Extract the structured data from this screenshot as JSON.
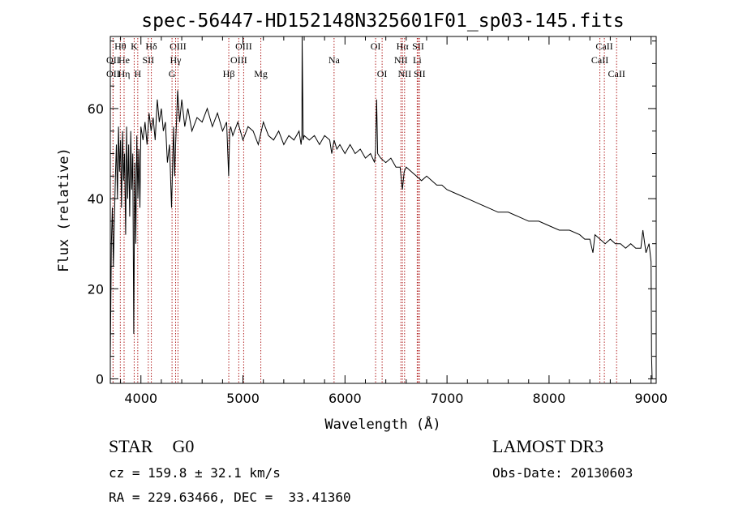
{
  "chart_data": {
    "type": "line",
    "title": "spec-56447-HD152148N325601F01_sp03-145.fits",
    "xlabel": "Wavelength (Å)",
    "ylabel": "Flux (relative)",
    "xlim": [
      3700,
      9050
    ],
    "ylim": [
      -1,
      76
    ],
    "x_ticks": [
      4000,
      5000,
      6000,
      7000,
      8000,
      9000
    ],
    "y_ticks": [
      0,
      20,
      40,
      60
    ],
    "x_tick_labels": [
      "4000",
      "5000",
      "6000",
      "7000",
      "8000",
      "9000"
    ],
    "y_tick_labels": [
      "0",
      "20",
      "40",
      "60"
    ],
    "line_color": "#000000",
    "marker_color": "#b22222",
    "spectrum": {
      "x": [
        3700,
        3710,
        3720,
        3730,
        3740,
        3750,
        3760,
        3770,
        3780,
        3790,
        3800,
        3810,
        3820,
        3830,
        3840,
        3850,
        3860,
        3870,
        3880,
        3890,
        3900,
        3910,
        3920,
        3930,
        3940,
        3950,
        3960,
        3970,
        3980,
        3990,
        4000,
        4020,
        4040,
        4060,
        4080,
        4100,
        4120,
        4140,
        4160,
        4180,
        4200,
        4220,
        4240,
        4260,
        4280,
        4300,
        4320,
        4330,
        4340,
        4350,
        4360,
        4380,
        4400,
        4430,
        4460,
        4500,
        4550,
        4600,
        4650,
        4700,
        4750,
        4800,
        4840,
        4860,
        4870,
        4880,
        4900,
        4950,
        5000,
        5050,
        5100,
        5150,
        5200,
        5250,
        5300,
        5350,
        5400,
        5450,
        5500,
        5550,
        5570,
        5578,
        5580,
        5590,
        5600,
        5650,
        5700,
        5750,
        5800,
        5850,
        5870,
        5893,
        5920,
        5950,
        6000,
        6050,
        6100,
        6150,
        6200,
        6250,
        6290,
        6300,
        6310,
        6320,
        6350,
        6400,
        6450,
        6500,
        6540,
        6563,
        6580,
        6600,
        6650,
        6700,
        6750,
        6800,
        6850,
        6900,
        6950,
        7000,
        7100,
        7200,
        7300,
        7400,
        7500,
        7600,
        7700,
        7800,
        7900,
        8000,
        8100,
        8200,
        8300,
        8350,
        8400,
        8430,
        8450,
        8500,
        8550,
        8600,
        8650,
        8700,
        8750,
        8800,
        8850,
        8900,
        8920,
        8950,
        8980,
        9000,
        9005,
        9010
      ],
      "y": [
        4,
        30,
        38,
        25,
        35,
        45,
        52,
        40,
        56,
        46,
        53,
        38,
        55,
        44,
        50,
        32,
        56,
        40,
        52,
        36,
        55,
        42,
        50,
        10,
        48,
        30,
        54,
        40,
        51,
        38,
        56,
        53,
        57,
        52,
        59,
        55,
        58,
        53,
        62,
        57,
        60,
        55,
        57,
        48,
        52,
        38,
        56,
        45,
        52,
        58,
        64,
        57,
        62,
        56,
        60,
        55,
        58,
        57,
        60,
        56,
        59,
        55,
        57,
        45,
        55,
        56,
        54,
        57,
        53,
        56,
        55,
        52,
        57,
        54,
        53,
        55,
        52,
        54,
        53,
        55,
        52,
        54,
        76,
        53,
        54,
        53,
        54,
        52,
        54,
        53,
        50,
        53,
        51,
        52,
        50,
        52,
        50,
        51,
        49,
        50,
        48,
        51,
        62,
        50,
        49,
        48,
        49,
        47,
        47,
        42,
        46,
        47,
        46,
        45,
        44,
        45,
        44,
        43,
        43,
        42,
        41,
        40,
        39,
        38,
        37,
        37,
        36,
        35,
        35,
        34,
        33,
        33,
        32,
        31,
        31,
        28,
        32,
        31,
        30,
        31,
        30,
        30,
        29,
        30,
        29,
        29,
        33,
        28,
        30,
        26,
        5,
        0
      ]
    },
    "line_markers": [
      {
        "label": "OII",
        "x": 3727,
        "row": 2
      },
      {
        "label": "OII",
        "x": 3727,
        "row": 3
      },
      {
        "label": "Hθ",
        "x": 3798,
        "row": 1
      },
      {
        "label": "He",
        "x": 3835,
        "row": 2
      },
      {
        "label": "Hη",
        "x": 3835,
        "row": 3
      },
      {
        "label": "K",
        "x": 3934,
        "row": 1
      },
      {
        "label": "H",
        "x": 3969,
        "row": 3
      },
      {
        "label": "Hδ",
        "x": 4102,
        "row": 1
      },
      {
        "label": "SII",
        "x": 4072,
        "row": 2
      },
      {
        "label": "OIII",
        "x": 4363,
        "row": 1
      },
      {
        "label": "Hγ",
        "x": 4340,
        "row": 2
      },
      {
        "label": "G",
        "x": 4305,
        "row": 3
      },
      {
        "label": "Hβ",
        "x": 4861,
        "row": 3
      },
      {
        "label": "OIII",
        "x": 5007,
        "row": 1
      },
      {
        "label": "OIII",
        "x": 4959,
        "row": 2
      },
      {
        "label": "Mg",
        "x": 5175,
        "row": 3
      },
      {
        "label": "Na",
        "x": 5893,
        "row": 2
      },
      {
        "label": "OI",
        "x": 6300,
        "row": 1
      },
      {
        "label": "OI",
        "x": 6364,
        "row": 3
      },
      {
        "label": "Hα",
        "x": 6563,
        "row": 1
      },
      {
        "label": "NII",
        "x": 6548,
        "row": 2
      },
      {
        "label": "NII",
        "x": 6584,
        "row": 3
      },
      {
        "label": "SII",
        "x": 6717,
        "row": 1
      },
      {
        "label": "Li",
        "x": 6708,
        "row": 2
      },
      {
        "label": "SII",
        "x": 6731,
        "row": 3
      },
      {
        "label": "CaII",
        "x": 8542,
        "row": 1
      },
      {
        "label": "CaII",
        "x": 8498,
        "row": 2
      },
      {
        "label": "CaII",
        "x": 8662,
        "row": 3
      }
    ]
  },
  "info": {
    "class_label": "STAR",
    "subclass": "G0",
    "survey": "LAMOST DR3",
    "cz_text": "cz = 159.8 ± 32.1 km/s",
    "obs_date_text": "Obs-Date: 20130603",
    "radec_text": "RA = 229.63466, DEC =  33.41360"
  }
}
